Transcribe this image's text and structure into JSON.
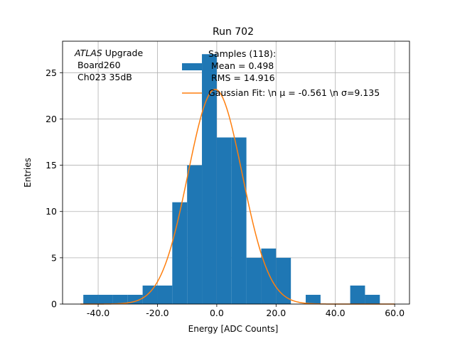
{
  "chart_data": {
    "type": "bar",
    "title": "Run 702",
    "xlabel": "Energy [ADC Counts]",
    "ylabel": "Entries",
    "xlim": [
      -52,
      65
    ],
    "ylim": [
      0,
      28.4
    ],
    "x_ticks": [
      -40.0,
      -20.0,
      0.0,
      20.0,
      40.0,
      60.0
    ],
    "x_tick_labels": [
      "-40.0",
      "-20.0",
      "0.0",
      "20.0",
      "40.0",
      "60.0"
    ],
    "y_ticks": [
      0,
      5,
      10,
      15,
      20,
      25
    ],
    "y_tick_labels": [
      "0",
      "5",
      "10",
      "15",
      "20",
      "25"
    ],
    "grid": true,
    "bin_edges": [
      -45,
      -40,
      -35,
      -30,
      -25,
      -20,
      -15,
      -10,
      -5,
      0,
      5,
      10,
      15,
      20,
      25,
      30,
      35,
      40,
      45,
      50,
      55
    ],
    "counts": [
      1,
      1,
      1,
      1,
      2,
      2,
      11,
      15,
      27,
      18,
      18,
      5,
      6,
      5,
      0,
      1,
      0,
      0,
      2,
      1
    ],
    "bar_color": "#1f77b4",
    "fit": {
      "type": "gaussian",
      "mu": -0.561,
      "sigma": 9.135,
      "amplitude": 23.2,
      "x_range": [
        -46,
        60
      ],
      "color": "#ff7f0e"
    },
    "annotation": {
      "italic": "ATLAS",
      "rest": " Upgrade",
      "line2": " Board260",
      "line3": " Ch023 35dB"
    },
    "legend": {
      "placement": "top-right",
      "hist_entry": [
        "Samples (118):",
        " Mean = 0.498",
        " RMS = 14.916"
      ],
      "fit_entry": "Gaussian Fit: \\n μ = -0.561 \\n σ=9.135"
    }
  }
}
